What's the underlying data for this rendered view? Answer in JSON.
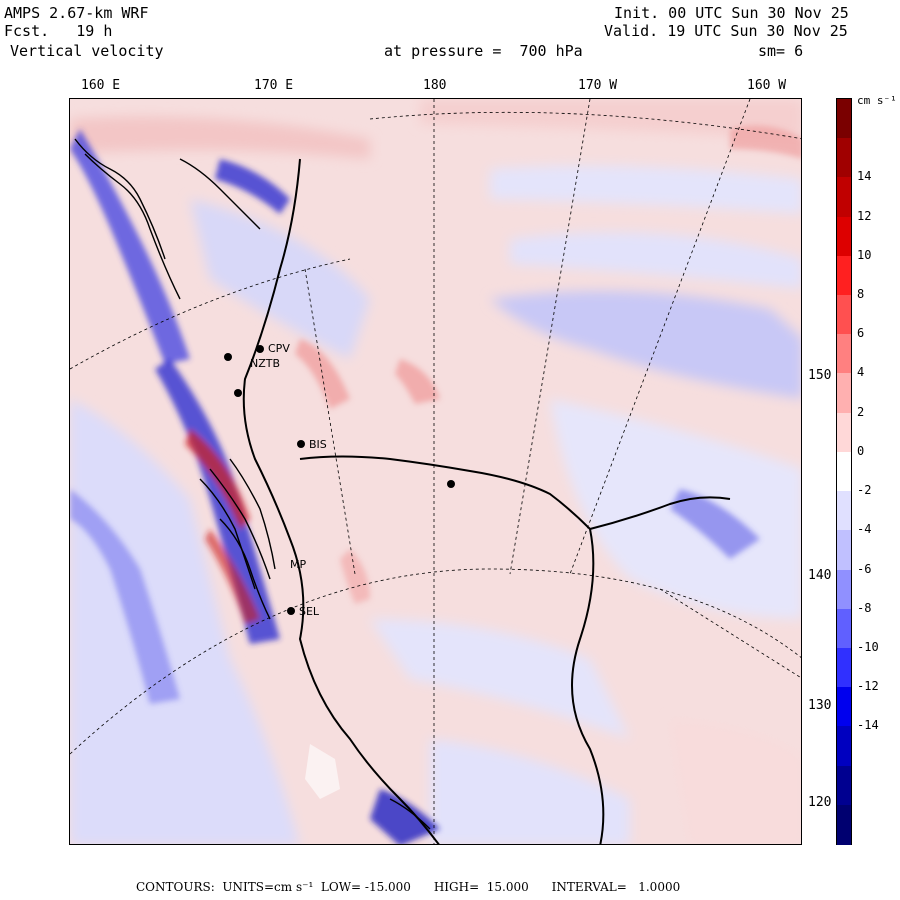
{
  "header": {
    "model": "AMPS 2.67-km WRF",
    "fcst": "Fcst.   19 h",
    "field": "Vertical velocity",
    "init": "Init. 00 UTC Sun 30 Nov 25",
    "valid": "Valid. 19 UTC Sun 30 Nov 25",
    "pressure": "at pressure =  700 hPa",
    "smooth": "sm= 6"
  },
  "axes": {
    "lon_labels": [
      "160 E",
      "170 E",
      "180",
      "170 W",
      "160 W"
    ],
    "lat_labels": [
      "150 W",
      "140 W",
      "130 W",
      "120 W"
    ]
  },
  "colorbar": {
    "units": "cm s⁻¹",
    "tick_labels": [
      "14",
      "12",
      "10",
      "8",
      "6",
      "4",
      "2",
      "0",
      "-2",
      "-4",
      "-6",
      "-8",
      "-10",
      "-12",
      "-14"
    ],
    "colors": [
      "#7a0000",
      "#a00000",
      "#c00000",
      "#dd0000",
      "#ff2020",
      "#ff5050",
      "#ff8080",
      "#ffb0b0",
      "#ffd8d8",
      "#ffffff",
      "#e0e0ff",
      "#c0c0ff",
      "#9090ff",
      "#6060ff",
      "#3030ff",
      "#0000ee",
      "#0000c0",
      "#000090",
      "#000070"
    ]
  },
  "stations": [
    {
      "id": "CPV",
      "label": "CPV"
    },
    {
      "id": "NZTB",
      "label": "NZTB"
    },
    {
      "id": "BIS",
      "label": "BIS"
    },
    {
      "id": "MP",
      "label": "MP"
    },
    {
      "id": "SEL",
      "label": "SEL"
    }
  ],
  "footer": {
    "contours": "CONTOURS:  UNITS=cm s⁻¹  LOW= -15.000      HIGH=  15.000      INTERVAL=   1.0000"
  }
}
